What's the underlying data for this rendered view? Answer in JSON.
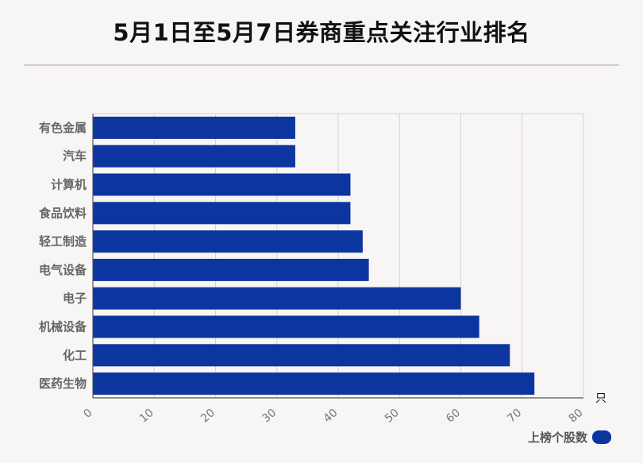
{
  "title": "5月1日至5月7日券商重点关注行业排名",
  "chart_data": {
    "type": "bar",
    "orientation": "horizontal",
    "title": "5月1日至5月7日券商重点关注行业排名",
    "categories": [
      "有色金属",
      "汽车",
      "计算机",
      "食品饮料",
      "轻工制造",
      "电气设备",
      "电子",
      "机械设备",
      "化工",
      "医药生物"
    ],
    "series": [
      {
        "name": "上榜个股数",
        "values": [
          33,
          33,
          42,
          42,
          44,
          45,
          60,
          63,
          68,
          72
        ]
      }
    ],
    "xlim": [
      0,
      80
    ],
    "x_ticks": [
      "0",
      "10",
      "20",
      "30",
      "40",
      "50",
      "60",
      "70",
      "80"
    ],
    "x_unit": "只",
    "grid": true,
    "legend_position": "bottom-right",
    "bar_color": "#0d35a0"
  }
}
